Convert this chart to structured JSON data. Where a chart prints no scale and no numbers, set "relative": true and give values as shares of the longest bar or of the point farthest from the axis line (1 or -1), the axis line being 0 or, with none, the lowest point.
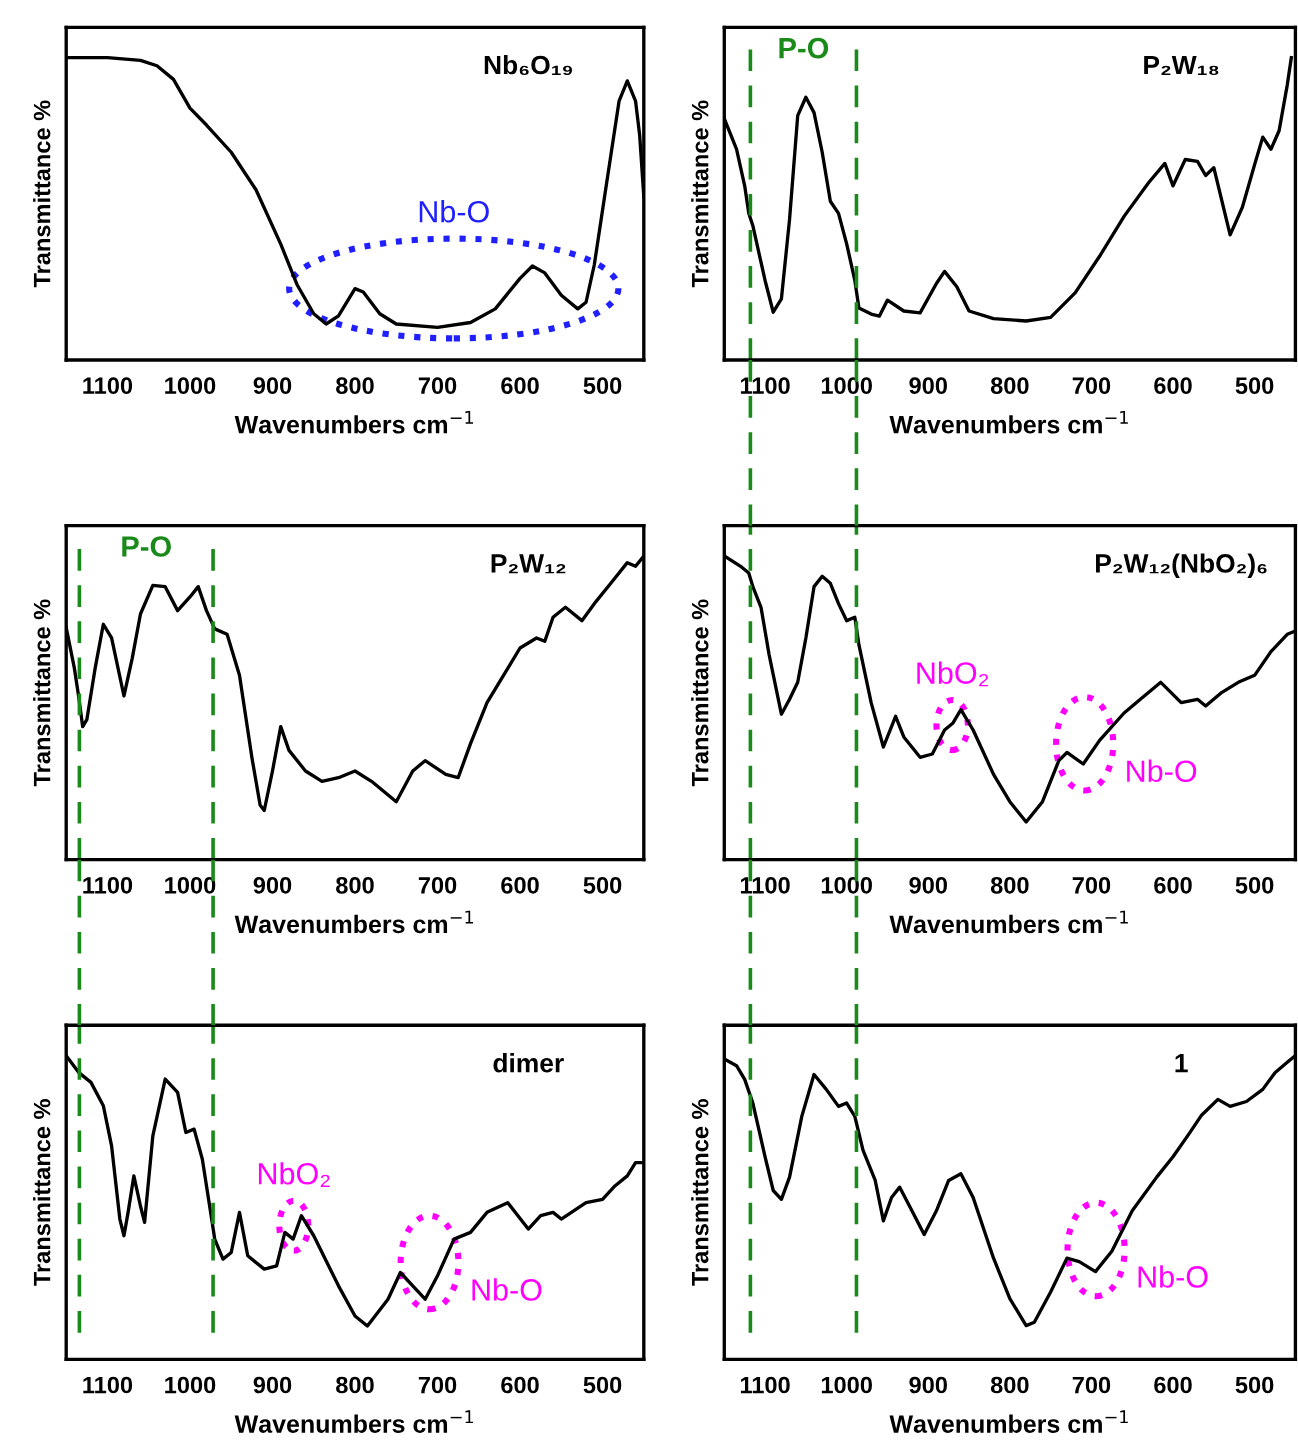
{
  "chart_data": [
    {
      "type": "line",
      "title": "Nb₆O₁₉",
      "xlabel": "Wavenumbers cm$^{−1}$",
      "ylabel": "Transmittance %",
      "relative": true,
      "xlim": [
        1150,
        450
      ],
      "xticks": [
        1100,
        1000,
        900,
        800,
        700,
        600,
        500
      ],
      "tick_labels": "x",
      "x": [
        1150,
        1100,
        1060,
        1040,
        1020,
        1000,
        980,
        950,
        920,
        890,
        870,
        850,
        835,
        820,
        800,
        790,
        770,
        750,
        700,
        660,
        630,
        600,
        585,
        570,
        550,
        530,
        520,
        510,
        495,
        480,
        470,
        460,
        455,
        450
      ],
      "series": [
        {
          "color": "#000000",
          "values": [
            1.0,
            1.0,
            0.991,
            0.973,
            0.928,
            0.833,
            0.777,
            0.687,
            0.563,
            0.383,
            0.248,
            0.153,
            0.119,
            0.146,
            0.236,
            0.225,
            0.153,
            0.119,
            0.108,
            0.124,
            0.169,
            0.27,
            0.311,
            0.288,
            0.214,
            0.169,
            0.191,
            0.315,
            0.586,
            0.856,
            0.923,
            0.856,
            0.743,
            0.541
          ]
        }
      ],
      "annotations": [
        "Nb-O"
      ]
    },
    {
      "type": "line",
      "title": "P₂W₁₈",
      "xlabel": "Wavenumbers cm$^{−1}$",
      "ylabel": "Transmittance %",
      "relative": true,
      "xlim": [
        1150,
        450
      ],
      "xticks": [
        1100,
        1000,
        900,
        800,
        700,
        600,
        500
      ],
      "tick_labels": "x",
      "x": [
        1150,
        1135,
        1125,
        1120,
        1115,
        1100,
        1090,
        1080,
        1070,
        1060,
        1050,
        1040,
        1030,
        1020,
        1010,
        1000,
        990,
        985,
        970,
        960,
        950,
        930,
        910,
        890,
        880,
        865,
        850,
        820,
        780,
        750,
        720,
        690,
        660,
        630,
        610,
        600,
        585,
        570,
        560,
        550,
        530,
        515,
        500,
        490,
        480,
        470,
        460,
        455
      ],
      "series": [
        {
          "color": "#000000",
          "values": [
            0.798,
            0.697,
            0.576,
            0.485,
            0.444,
            0.263,
            0.158,
            0.202,
            0.465,
            0.808,
            0.869,
            0.818,
            0.687,
            0.525,
            0.485,
            0.384,
            0.263,
            0.172,
            0.152,
            0.145,
            0.198,
            0.162,
            0.156,
            0.253,
            0.293,
            0.242,
            0.162,
            0.137,
            0.129,
            0.141,
            0.222,
            0.343,
            0.475,
            0.586,
            0.65,
            0.576,
            0.663,
            0.657,
            0.61,
            0.636,
            0.414,
            0.505,
            0.646,
            0.737,
            0.697,
            0.758,
            0.909,
            1.0
          ]
        }
      ],
      "ref_lines": [
        {
          "axis": "x",
          "value": 1118,
          "label": "P-O",
          "color": "#1a8a1a",
          "line_style": "dashed"
        },
        {
          "axis": "x",
          "value": 988,
          "color": "#1a8a1a",
          "line_style": "dashed"
        }
      ]
    },
    {
      "type": "line",
      "title": "P₂W₁₂",
      "xlabel": "Wavenumbers cm$^{−1}$",
      "ylabel": "Transmittance %",
      "relative": true,
      "xlim": [
        1150,
        450
      ],
      "xticks": [
        1100,
        1000,
        900,
        800,
        700,
        600,
        500
      ],
      "tick_labels": "x",
      "x": [
        1150,
        1140,
        1135,
        1130,
        1125,
        1115,
        1105,
        1095,
        1080,
        1070,
        1060,
        1045,
        1030,
        1015,
        1000,
        990,
        980,
        970,
        955,
        940,
        925,
        915,
        910,
        900,
        890,
        880,
        860,
        840,
        820,
        800,
        780,
        750,
        730,
        715,
        690,
        675,
        660,
        640,
        620,
        600,
        580,
        570,
        560,
        545,
        525,
        510,
        490,
        470,
        460,
        450
      ],
      "series": [
        {
          "color": "#000000",
          "values": [
            0.764,
            0.629,
            0.539,
            0.438,
            0.461,
            0.629,
            0.775,
            0.73,
            0.539,
            0.663,
            0.809,
            0.903,
            0.899,
            0.82,
            0.865,
            0.899,
            0.82,
            0.76,
            0.742,
            0.607,
            0.337,
            0.18,
            0.162,
            0.292,
            0.438,
            0.36,
            0.292,
            0.258,
            0.27,
            0.292,
            0.258,
            0.191,
            0.292,
            0.326,
            0.281,
            0.27,
            0.382,
            0.517,
            0.607,
            0.697,
            0.73,
            0.719,
            0.798,
            0.831,
            0.787,
            0.843,
            0.91,
            0.978,
            0.966,
            1.0
          ]
        }
      ],
      "ref_lines": [
        {
          "axis": "x",
          "value": 1134,
          "label": "P-O",
          "color": "#1a8a1a",
          "line_style": "dashed"
        },
        {
          "axis": "x",
          "value": 972,
          "color": "#1a8a1a",
          "line_style": "dashed"
        }
      ]
    },
    {
      "type": "line",
      "title": "P₂W₁₂(NbO₂)₆",
      "xlabel": "Wavenumbers cm$^{−1}$",
      "ylabel": "Transmittance %",
      "relative": true,
      "xlim": [
        1150,
        450
      ],
      "xticks": [
        1100,
        1000,
        900,
        800,
        700,
        600,
        500
      ],
      "tick_labels": "x",
      "x": [
        1150,
        1130,
        1120,
        1115,
        1105,
        1095,
        1080,
        1070,
        1060,
        1050,
        1040,
        1030,
        1020,
        1010,
        1000,
        990,
        985,
        970,
        955,
        940,
        930,
        910,
        895,
        880,
        870,
        860,
        845,
        820,
        800,
        780,
        760,
        740,
        730,
        710,
        690,
        660,
        640,
        615,
        590,
        570,
        560,
        540,
        520,
        500,
        480,
        460,
        450
      ],
      "series": [
        {
          "color": "#000000",
          "values": [
            1.0,
            0.966,
            0.944,
            0.899,
            0.831,
            0.674,
            0.479,
            0.528,
            0.584,
            0.73,
            0.899,
            0.933,
            0.91,
            0.843,
            0.787,
            0.798,
            0.708,
            0.517,
            0.371,
            0.472,
            0.404,
            0.337,
            0.348,
            0.427,
            0.449,
            0.494,
            0.427,
            0.281,
            0.191,
            0.124,
            0.191,
            0.326,
            0.353,
            0.315,
            0.393,
            0.483,
            0.528,
            0.584,
            0.517,
            0.528,
            0.506,
            0.551,
            0.584,
            0.607,
            0.685,
            0.742,
            0.753
          ]
        }
      ],
      "ref_lines": [
        {
          "axis": "x",
          "value": 1118,
          "color": "#1a8a1a",
          "line_style": "dashed"
        },
        {
          "axis": "x",
          "value": 988,
          "color": "#1a8a1a",
          "line_style": "dashed"
        }
      ],
      "annotations": [
        "NbO₂",
        "Nb-O"
      ]
    },
    {
      "type": "line",
      "title": "dimer",
      "xlabel": "Wavenumbers cm$^{−1}$",
      "ylabel": "Transmittance %",
      "relative": true,
      "xlim": [
        1150,
        450
      ],
      "xticks": [
        1100,
        1000,
        900,
        800,
        700,
        600,
        500
      ],
      "tick_labels": "x",
      "x": [
        1150,
        1135,
        1120,
        1105,
        1095,
        1085,
        1080,
        1075,
        1068,
        1060,
        1055,
        1045,
        1030,
        1015,
        1005,
        995,
        985,
        975,
        970,
        960,
        950,
        940,
        930,
        910,
        895,
        885,
        875,
        865,
        850,
        820,
        800,
        785,
        760,
        745,
        730,
        715,
        700,
        680,
        660,
        640,
        615,
        590,
        575,
        560,
        550,
        520,
        500,
        485,
        470,
        460,
        450
      ],
      "series": [
        {
          "color": "#000000",
          "values": [
            1.0,
            0.945,
            0.912,
            0.835,
            0.703,
            0.462,
            0.407,
            0.484,
            0.604,
            0.505,
            0.451,
            0.736,
            0.923,
            0.879,
            0.747,
            0.758,
            0.659,
            0.484,
            0.396,
            0.33,
            0.352,
            0.484,
            0.341,
            0.297,
            0.308,
            0.418,
            0.396,
            0.473,
            0.407,
            0.242,
            0.143,
            0.11,
            0.198,
            0.286,
            0.242,
            0.198,
            0.275,
            0.396,
            0.418,
            0.484,
            0.516,
            0.429,
            0.473,
            0.484,
            0.462,
            0.516,
            0.527,
            0.571,
            0.604,
            0.648,
            0.648
          ]
        }
      ],
      "ref_lines": [
        {
          "axis": "x",
          "value": 1134,
          "color": "#1a8a1a",
          "line_style": "dashed"
        },
        {
          "axis": "x",
          "value": 972,
          "color": "#1a8a1a",
          "line_style": "dashed"
        }
      ],
      "annotations": [
        "NbO₂",
        "Nb-O"
      ]
    },
    {
      "type": "line",
      "title": "1",
      "xlabel": "Wavenumbers cm$^{−1}$",
      "ylabel": "Transmittance %",
      "relative": true,
      "xlim": [
        1150,
        450
      ],
      "xticks": [
        1100,
        1000,
        900,
        800,
        700,
        600,
        500
      ],
      "tick_labels": "x",
      "x": [
        1150,
        1135,
        1125,
        1115,
        1100,
        1090,
        1080,
        1070,
        1055,
        1040,
        1025,
        1010,
        1000,
        990,
        980,
        965,
        955,
        945,
        935,
        920,
        905,
        890,
        875,
        860,
        845,
        820,
        800,
        780,
        770,
        750,
        730,
        715,
        695,
        675,
        650,
        620,
        600,
        580,
        565,
        545,
        530,
        510,
        490,
        475,
        460,
        450
      ],
      "series": [
        {
          "color": "#000000",
          "values": [
            0.989,
            0.967,
            0.922,
            0.844,
            0.667,
            0.556,
            0.527,
            0.6,
            0.8,
            0.938,
            0.889,
            0.833,
            0.844,
            0.8,
            0.689,
            0.589,
            0.456,
            0.533,
            0.567,
            0.489,
            0.411,
            0.489,
            0.589,
            0.611,
            0.533,
            0.333,
            0.2,
            0.111,
            0.122,
            0.222,
            0.333,
            0.322,
            0.289,
            0.356,
            0.489,
            0.6,
            0.667,
            0.744,
            0.804,
            0.856,
            0.833,
            0.849,
            0.889,
            0.944,
            0.978,
            1.0
          ]
        }
      ],
      "ref_lines": [
        {
          "axis": "x",
          "value": 1118,
          "color": "#1a8a1a",
          "line_style": "dashed"
        },
        {
          "axis": "x",
          "value": 988,
          "color": "#1a8a1a",
          "line_style": "dashed"
        }
      ],
      "annotations": [
        "Nb-O"
      ]
    }
  ]
}
